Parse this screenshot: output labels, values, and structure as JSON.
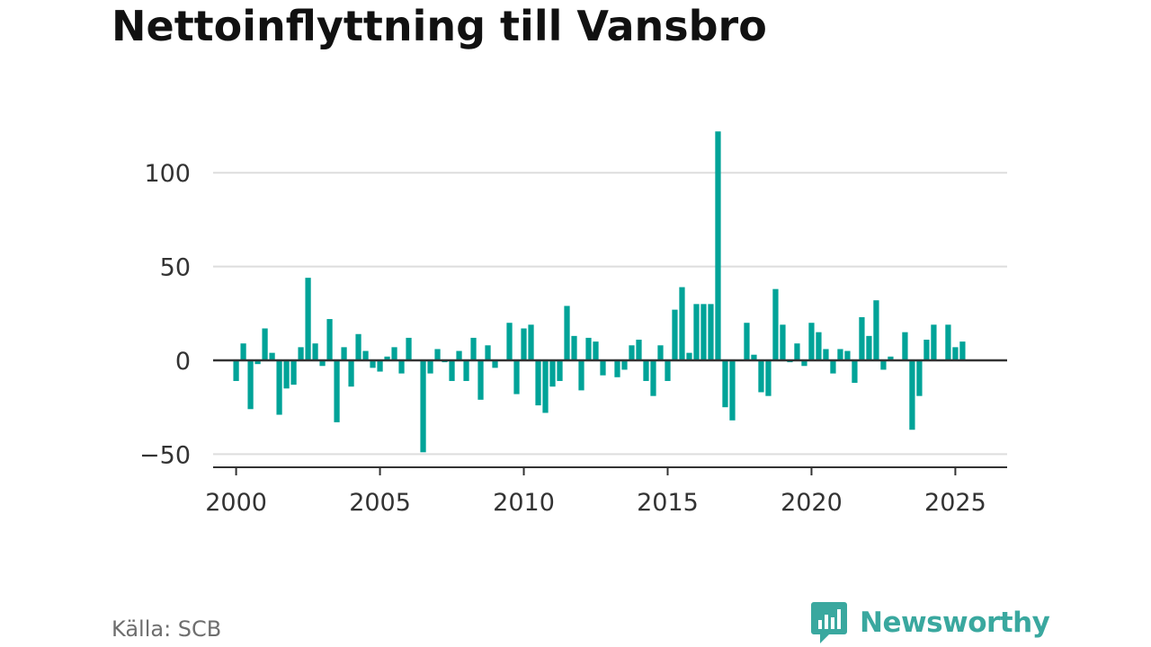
{
  "title": "Nettoinflyttning till Vansbro",
  "source": "Källa: SCB",
  "brand": {
    "name": "Newsworthy",
    "icon": "newsworthy-logo-icon",
    "color": "#3aa89f"
  },
  "colors": {
    "bar": "#00a398",
    "grid": "#dddddd",
    "axis": "#333333"
  },
  "chart_data": {
    "type": "bar",
    "x_start": 2000,
    "x_step": 0.25,
    "values": [
      -11,
      9,
      -26,
      -2,
      17,
      4,
      -29,
      -15,
      -13,
      7,
      44,
      9,
      -3,
      22,
      -33,
      7,
      -14,
      14,
      5,
      -4,
      -6,
      2,
      7,
      -7,
      12,
      0,
      -49,
      -7,
      6,
      -1,
      -11,
      5,
      -11,
      12,
      -21,
      8,
      -4,
      0,
      20,
      -18,
      17,
      19,
      -24,
      -28,
      -14,
      -11,
      29,
      13,
      -16,
      12,
      10,
      -8,
      0,
      -9,
      -5,
      8,
      11,
      -11,
      -19,
      8,
      -11,
      27,
      39,
      4,
      30,
      30,
      30,
      122,
      -25,
      -32,
      0,
      20,
      3,
      -17,
      -19,
      38,
      19,
      -1,
      9,
      -3,
      20,
      15,
      6,
      -7,
      6,
      5,
      -12,
      23,
      13,
      32,
      -5,
      2,
      0,
      15,
      -37,
      -19,
      11,
      19,
      0,
      19,
      7,
      10
    ],
    "xlim": [
      1999.2,
      2026.8
    ],
    "ylim": [
      -57,
      125
    ],
    "x_ticks": [
      2000,
      2005,
      2010,
      2015,
      2020,
      2025
    ],
    "x_tick_labels": [
      "2000",
      "2005",
      "2010",
      "2015",
      "2020",
      "2025"
    ],
    "y_ticks": [
      -50,
      0,
      50,
      100
    ],
    "y_tick_labels": [
      "−50",
      "0",
      "50",
      "100"
    ],
    "grid": true,
    "legend": "none"
  }
}
